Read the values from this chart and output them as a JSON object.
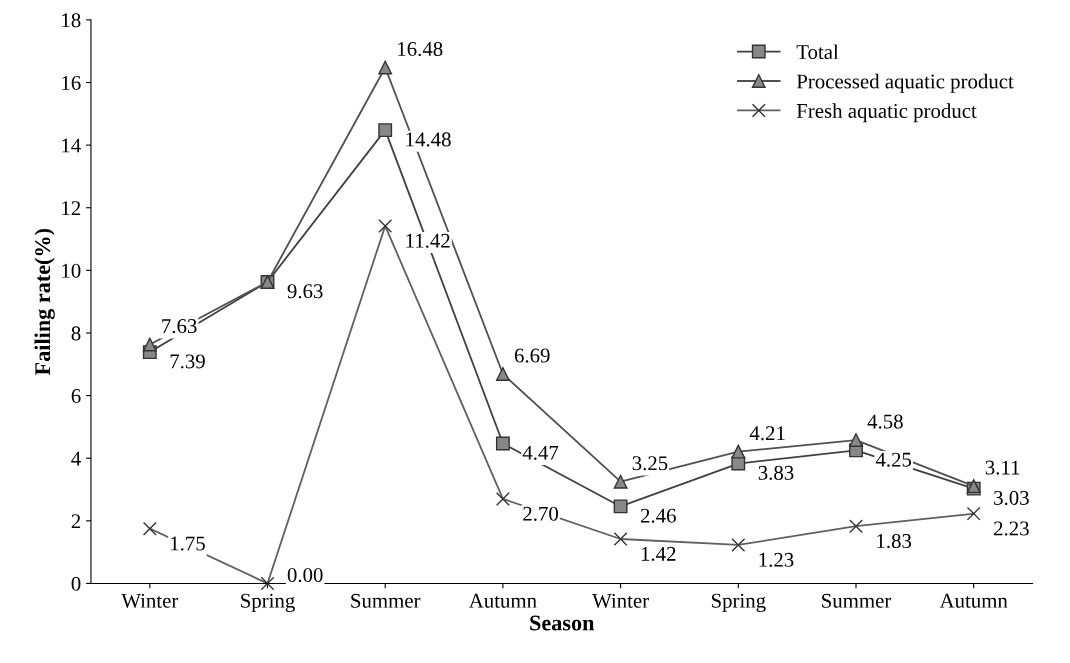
{
  "chart_data": {
    "type": "line",
    "xlabel": "Season",
    "ylabel": "Failing rate(%)",
    "categories": [
      "Winter",
      "Spring",
      "Summer",
      "Autumn",
      "Winter",
      "Spring",
      "Summer",
      "Autumn"
    ],
    "series": [
      {
        "name": "Total",
        "color": "#404040",
        "marker": "square",
        "values": [
          7.39,
          9.63,
          14.48,
          4.47,
          2.46,
          3.83,
          4.25,
          3.03
        ],
        "value_labels": [
          "7.39",
          "9.63",
          "14.48",
          "4.47",
          "2.46",
          "3.83",
          "4.25",
          "3.03"
        ]
      },
      {
        "name": "Processed aquatic product",
        "color": "#505050",
        "marker": "triangle",
        "values": [
          7.63,
          9.63,
          16.48,
          6.69,
          3.25,
          4.21,
          4.58,
          3.11
        ],
        "value_labels": [
          "7.63",
          null,
          "16.48",
          "6.69",
          "3.25",
          "4.21",
          "4.58",
          "3.11"
        ]
      },
      {
        "name": "Fresh aquatic product",
        "color": "#606060",
        "marker": "cross",
        "values": [
          1.75,
          0.0,
          11.42,
          2.7,
          1.42,
          1.23,
          1.83,
          2.23
        ],
        "value_labels": [
          "1.75",
          "0.00",
          "11.42",
          "2.70",
          "1.42",
          "1.23",
          "1.83",
          "2.23"
        ]
      }
    ],
    "ylim": [
      0,
      18
    ],
    "yticks": [
      0,
      2,
      4,
      6,
      8,
      10,
      12,
      14,
      16,
      18
    ],
    "legend": "top right",
    "grid": false,
    "line_style": "solid"
  }
}
